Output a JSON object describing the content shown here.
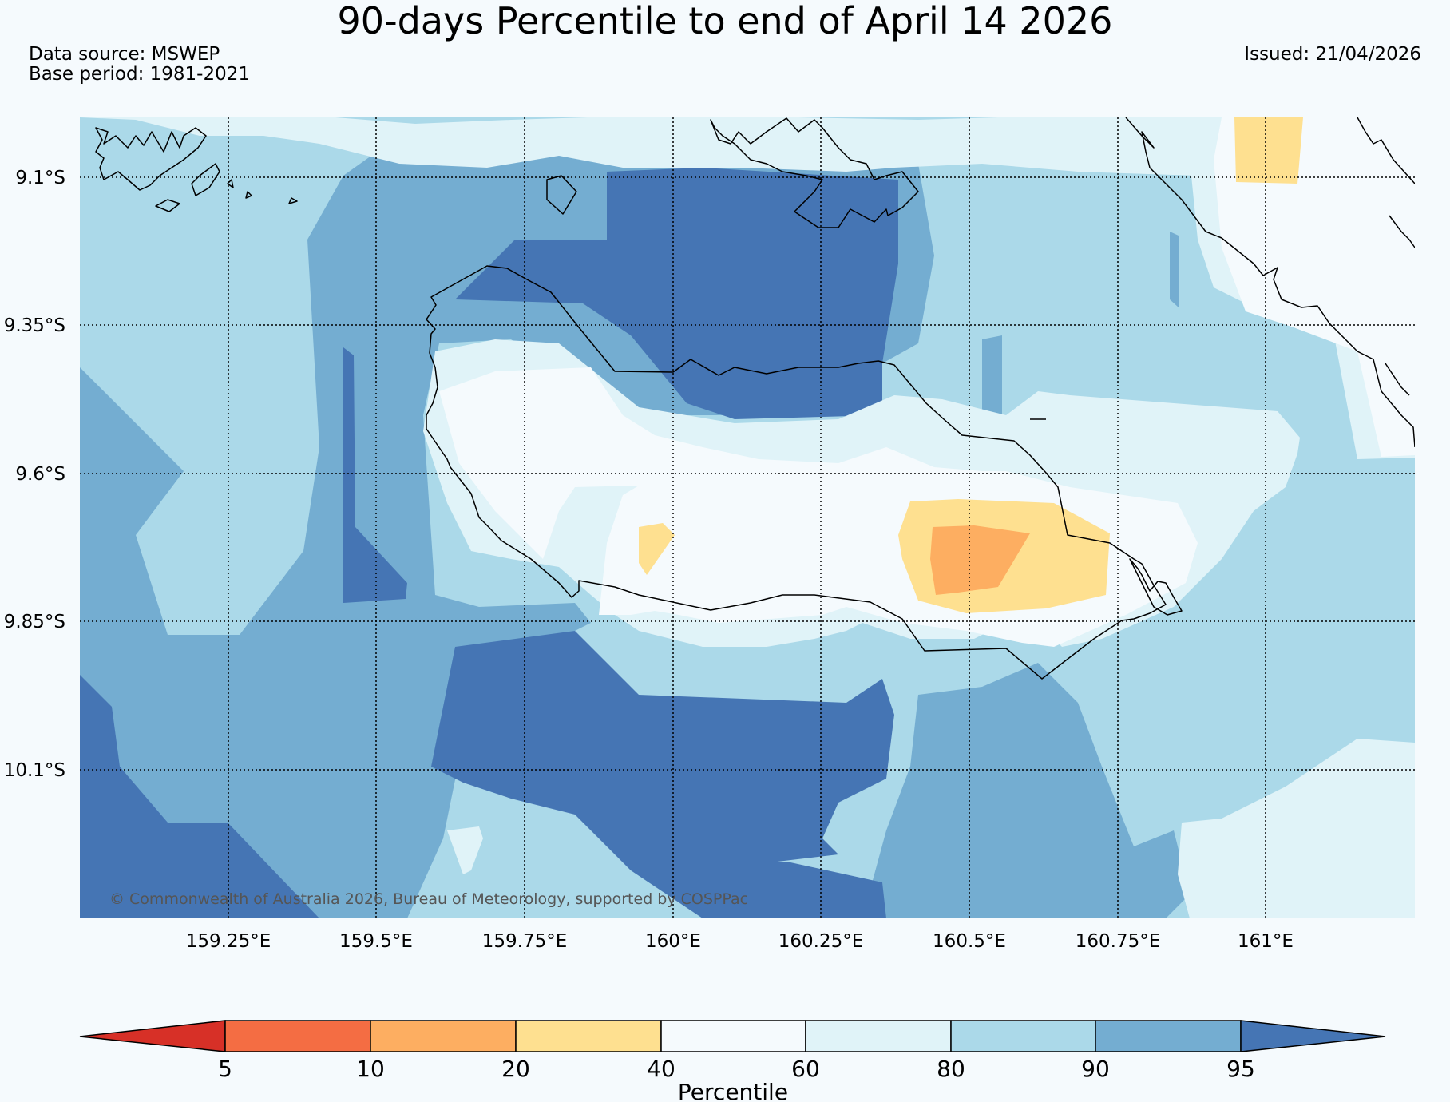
{
  "header": {
    "title": "90-days Percentile to end of April 14 2026",
    "data_source": "Data source: MSWEP",
    "base_period": "Base period: 1981-2021",
    "issued": "Issued: 21/04/2026"
  },
  "map": {
    "lat_labels": [
      "9.1°S",
      "9.35°S",
      "9.6°S",
      "9.85°S",
      "10.1°S"
    ],
    "lon_labels": [
      "159.25°E",
      "159.5°E",
      "159.75°E",
      "160°E",
      "160.25°E",
      "160.5°E",
      "160.75°E",
      "161°E"
    ],
    "copyright": "© Commonwealth of Australia 2026, Bureau of Meteorology, supported by COSPPac",
    "grid": "dotted"
  },
  "colorbar": {
    "title": "Percentile",
    "ticks": [
      "5",
      "10",
      "20",
      "40",
      "60",
      "80",
      "90",
      "95"
    ],
    "colors": {
      "lt5": "#d73027",
      "5_10": "#f46d43",
      "10_20": "#fdae61",
      "20_40": "#fee090",
      "40_60": "#f5fafd",
      "60_80": "#e0f3f8",
      "80_90": "#abd9e9",
      "90_95": "#74add1",
      "gt95": "#4575b4"
    }
  }
}
